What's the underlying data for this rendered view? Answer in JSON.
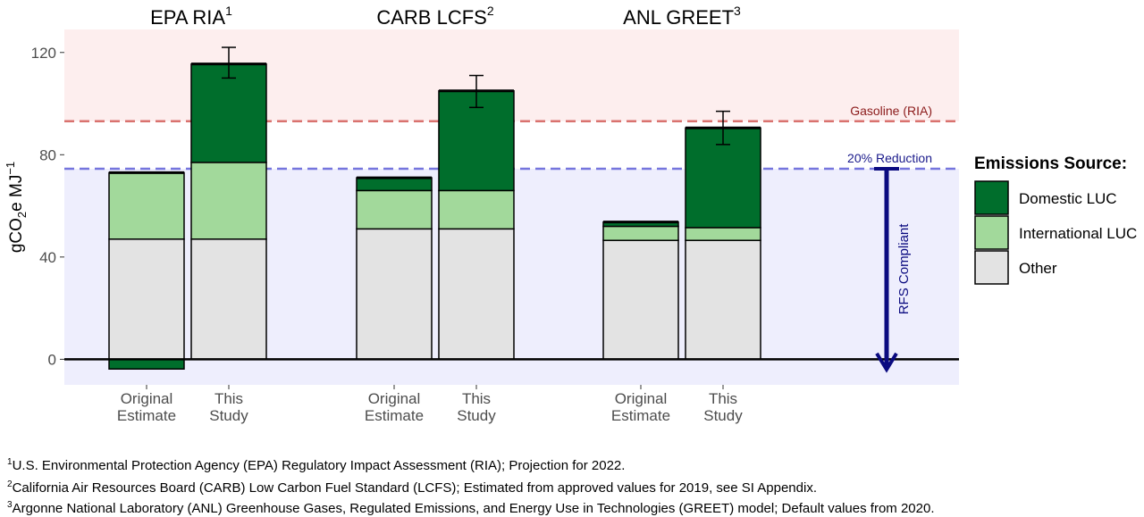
{
  "chart_data": {
    "type": "bar",
    "stacked": true,
    "ylabel_parts": {
      "main": "gCO",
      "sub": "2",
      "mid": "e MJ",
      "sup": "−1"
    },
    "y_ticks": [
      0,
      40,
      80,
      120
    ],
    "ylim": [
      -10,
      129
    ],
    "groups": [
      {
        "title": "EPA RIA",
        "sup": "1"
      },
      {
        "title": "CARB LCFS",
        "sup": "2"
      },
      {
        "title": "ANL GREET",
        "sup": "3"
      }
    ],
    "bar_labels": [
      {
        "line1": "Original",
        "line2": "Estimate"
      },
      {
        "line1": "This",
        "line2": "Study"
      }
    ],
    "series": [
      {
        "name": "Other",
        "color": "#e3e3e3"
      },
      {
        "name": "International LUC",
        "color": "#a2d99b"
      },
      {
        "name": "Domestic LUC",
        "color": "#006e2c"
      }
    ],
    "bars": [
      {
        "group": 0,
        "label": 0,
        "other": 47,
        "international_luc": 26,
        "domestic_luc": -3.8,
        "total": 73
      },
      {
        "group": 0,
        "label": 1,
        "other": 47,
        "international_luc": 30,
        "domestic_luc": 38.5,
        "total": 115.5,
        "err_low": 110,
        "err_high": 122
      },
      {
        "group": 1,
        "label": 0,
        "other": 51,
        "international_luc": 15,
        "domestic_luc": 5,
        "total": 71
      },
      {
        "group": 1,
        "label": 1,
        "other": 51,
        "international_luc": 15,
        "domestic_luc": 39,
        "total": 105,
        "err_low": 98.5,
        "err_high": 111
      },
      {
        "group": 2,
        "label": 0,
        "other": 46.5,
        "international_luc": 5.5,
        "domestic_luc": 1.7,
        "total": 53.7
      },
      {
        "group": 2,
        "label": 1,
        "other": 46.5,
        "international_luc": 5,
        "domestic_luc": 39,
        "total": 90.5,
        "err_low": 84,
        "err_high": 97
      }
    ],
    "reference_lines": [
      {
        "label": "Gasoline (RIA)",
        "value": 93.1,
        "color": "#d9726e",
        "text_color": "#8b1a1a"
      },
      {
        "label": "20% Reduction",
        "value": 74.5,
        "color": "#7575dd",
        "text_color": "#1a1a8b"
      }
    ],
    "bands": [
      {
        "from": 93.1,
        "to": 129,
        "color": "#fdeeee"
      },
      {
        "from": -10,
        "to": 74.5,
        "color": "#eeeefd"
      }
    ],
    "compliance_arrow": {
      "label": "RFS Compliant",
      "from": 74.5,
      "to": -4,
      "color": "#0b0b80"
    },
    "legend": {
      "title": "Emissions Source:",
      "position": "right",
      "order": [
        "Domestic LUC",
        "International LUC",
        "Other"
      ]
    }
  },
  "footnotes": [
    {
      "sup": "1",
      "text": "U.S. Environmental Protection Agency (EPA) Regulatory Impact Assessment (RIA); Projection for 2022."
    },
    {
      "sup": "2",
      "text": "California Air Resources Board (CARB) Low Carbon Fuel Standard (LCFS); Estimated from approved values for 2019, see SI Appendix."
    },
    {
      "sup": "3",
      "text": "Argonne National Laboratory (ANL) Greenhouse Gases, Regulated Emissions, and Energy Use in Technologies (GREET) model; Default values from 2020."
    }
  ]
}
